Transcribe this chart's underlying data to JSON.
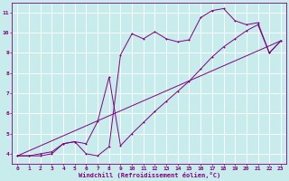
{
  "xlabel": "Windchill (Refroidissement éolien,°C)",
  "bg_color": "#c8ecec",
  "line_color": "#800080",
  "grid_color": "#ffffff",
  "xlim": [
    -0.5,
    23.5
  ],
  "ylim": [
    3.5,
    11.5
  ],
  "xticks": [
    0,
    1,
    2,
    3,
    4,
    5,
    6,
    7,
    8,
    9,
    10,
    11,
    12,
    13,
    14,
    15,
    16,
    17,
    18,
    19,
    20,
    21,
    22,
    23
  ],
  "yticks": [
    4,
    5,
    6,
    7,
    8,
    9,
    10,
    11
  ],
  "line1_x": [
    0,
    1,
    2,
    3,
    4,
    5,
    6,
    7,
    8,
    9,
    10,
    11,
    12,
    13,
    14,
    15,
    16,
    17,
    18,
    19,
    20,
    21,
    22,
    23
  ],
  "line1_y": [
    3.9,
    3.9,
    3.9,
    4.0,
    4.5,
    4.6,
    4.0,
    3.9,
    4.35,
    8.9,
    9.95,
    9.7,
    10.05,
    9.7,
    9.55,
    9.65,
    10.75,
    11.1,
    11.2,
    10.6,
    10.4,
    10.5,
    9.0,
    9.6
  ],
  "line2_x": [
    0,
    1,
    2,
    3,
    4,
    5,
    6,
    7,
    8,
    9,
    10,
    11,
    12,
    13,
    14,
    15,
    16,
    17,
    18,
    19,
    20,
    21,
    22,
    23
  ],
  "line2_y": [
    3.9,
    3.9,
    4.0,
    4.1,
    4.5,
    4.6,
    4.5,
    5.6,
    7.8,
    4.4,
    5.0,
    5.55,
    6.1,
    6.6,
    7.1,
    7.6,
    8.2,
    8.8,
    9.3,
    9.7,
    10.1,
    10.4,
    9.0,
    9.6
  ],
  "line3_x": [
    0,
    23
  ],
  "line3_y": [
    3.9,
    9.6
  ]
}
